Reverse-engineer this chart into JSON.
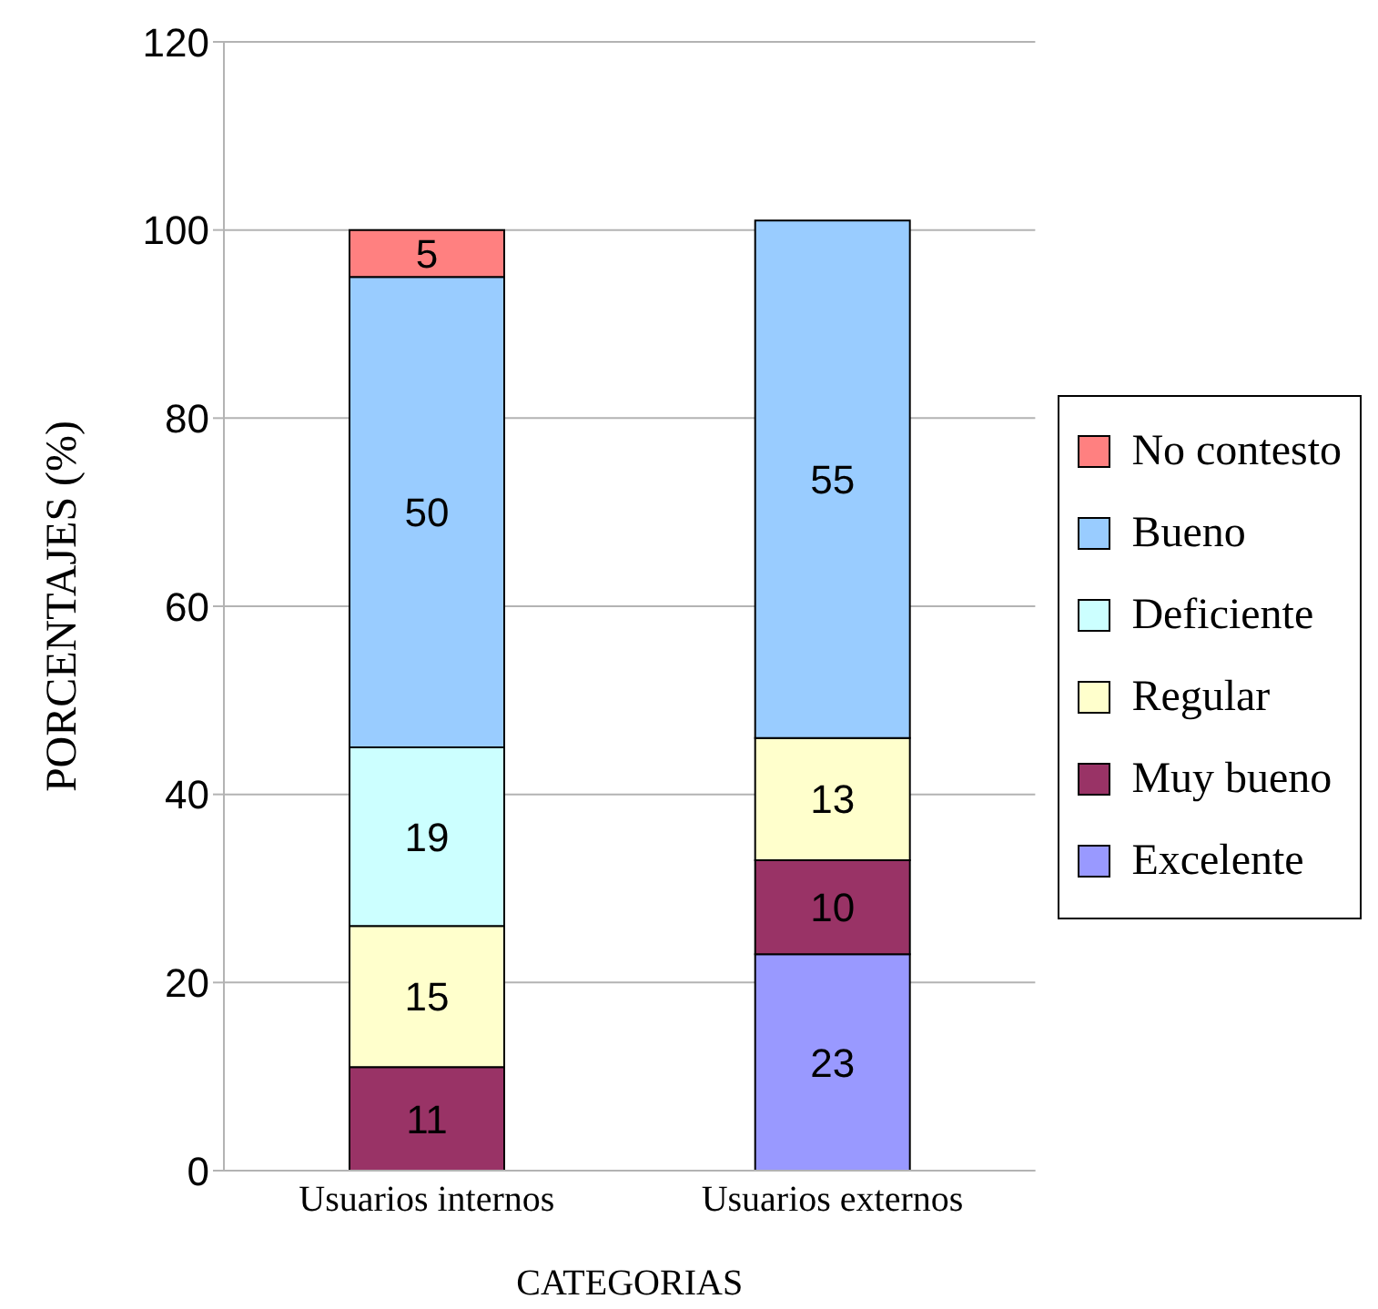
{
  "chart_data": {
    "type": "bar",
    "stacked": true,
    "ylabel": "PORCENTAJES (%)",
    "xlabel": "CATEGORIAS",
    "categories": [
      "Usuarios internos",
      "Usuarios externos"
    ],
    "series": [
      {
        "name": "Excelente",
        "color": "#9999ff",
        "values": [
          null,
          23
        ]
      },
      {
        "name": "Muy bueno",
        "color": "#993366",
        "values": [
          11,
          10
        ]
      },
      {
        "name": "Regular",
        "color": "#ffffcc",
        "values": [
          15,
          13
        ]
      },
      {
        "name": "Deficiente",
        "color": "#ccffff",
        "values": [
          19,
          null
        ]
      },
      {
        "name": "Bueno",
        "color": "#99ccff",
        "values": [
          50,
          55
        ]
      },
      {
        "name": "No contesto",
        "color": "#ff8080",
        "values": [
          5,
          null
        ]
      }
    ],
    "ylim": [
      0,
      120
    ],
    "yticks": [
      0,
      20,
      40,
      60,
      80,
      100,
      120
    ],
    "grid": "y",
    "legend": "right",
    "data_labels": true
  }
}
